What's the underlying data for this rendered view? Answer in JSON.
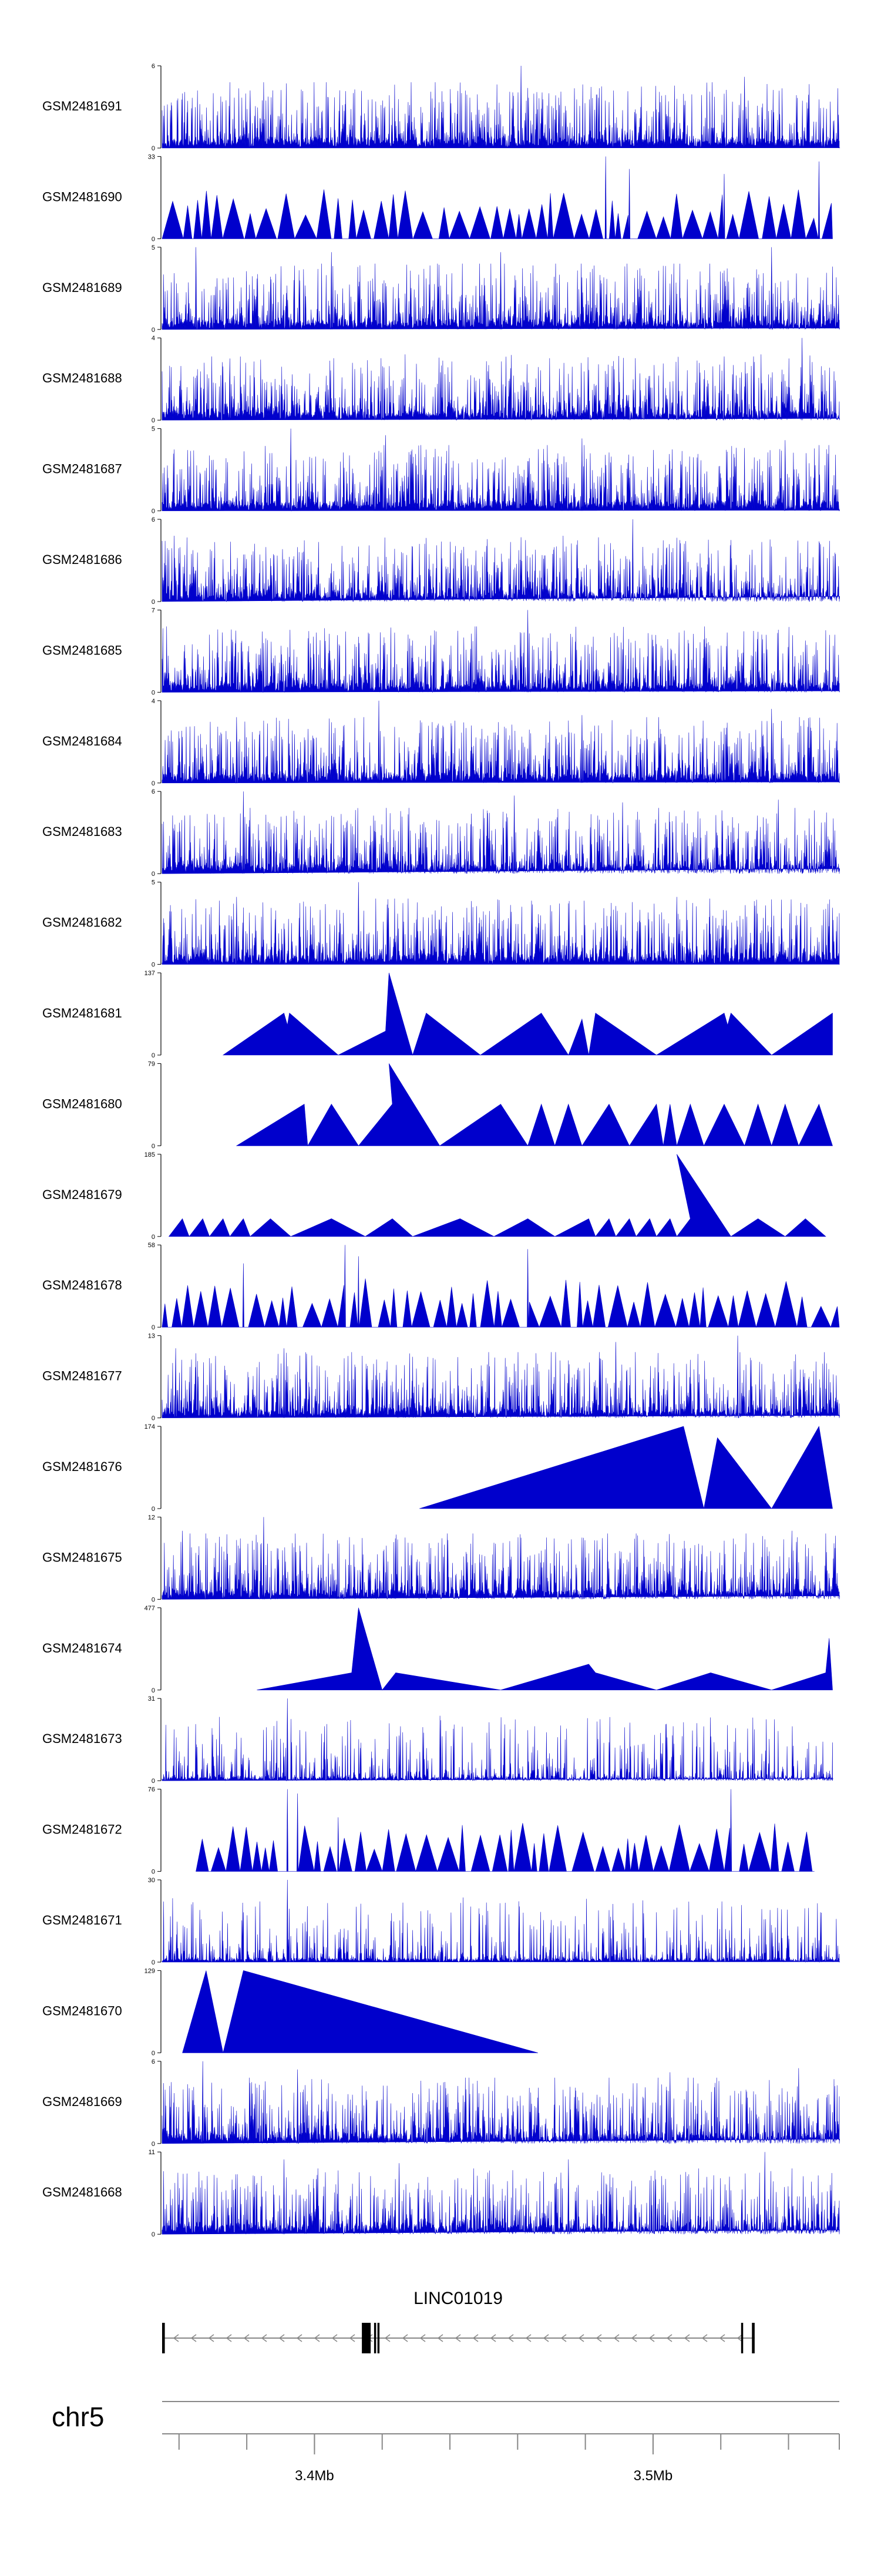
{
  "chart_data": {
    "type": "area",
    "title": "",
    "xlabel": "",
    "ylabel": "",
    "series_color": "#0000cc",
    "xlim_mb": [
      3.355,
      3.555
    ],
    "tracks": [
      {
        "name": "GSM2481691",
        "ymax_label": "6",
        "ymin_label": "0",
        "ymax": 6,
        "shape": "dense",
        "start": 0.0,
        "end": 1.0,
        "peaks": [
          [
            0.53,
            6.0
          ],
          [
            0.86,
            5.2
          ],
          [
            0.13,
            4.2
          ]
        ]
      },
      {
        "name": "GSM2481690",
        "ymax_label": "33",
        "ymin_label": "0",
        "ymax": 33,
        "shape": "sparse",
        "start": 0.0,
        "end": 0.99,
        "peaks": [
          [
            0.655,
            33.0
          ],
          [
            0.97,
            31.0
          ],
          [
            0.69,
            28.0
          ],
          [
            0.83,
            26.0
          ]
        ]
      },
      {
        "name": "GSM2481689",
        "ymax_label": "5",
        "ymin_label": "0",
        "ymax": 5,
        "shape": "dense",
        "start": 0.0,
        "end": 1.0,
        "peaks": [
          [
            0.05,
            5.0
          ],
          [
            0.25,
            4.7
          ],
          [
            0.5,
            4.7
          ],
          [
            0.9,
            5.0
          ]
        ]
      },
      {
        "name": "GSM2481688",
        "ymax_label": "4",
        "ymin_label": "0",
        "ymax": 4,
        "shape": "dense",
        "start": 0.0,
        "end": 1.0,
        "peaks": [
          [
            0.945,
            4.0
          ],
          [
            0.1,
            3.0
          ],
          [
            0.83,
            3.1
          ]
        ]
      },
      {
        "name": "GSM2481687",
        "ymax_label": "5",
        "ymin_label": "0",
        "ymax": 5,
        "shape": "dense",
        "start": 0.0,
        "end": 1.0,
        "peaks": [
          [
            0.19,
            5.0
          ],
          [
            0.33,
            4.6
          ],
          [
            0.62,
            4.4
          ],
          [
            0.92,
            4.3
          ]
        ]
      },
      {
        "name": "GSM2481686",
        "ymax_label": "6",
        "ymin_label": "0",
        "ymax": 6,
        "shape": "dense",
        "start": 0.0,
        "end": 1.0,
        "peaks": [
          [
            0.695,
            6.0
          ],
          [
            0.18,
            3.1
          ],
          [
            0.83,
            2.6
          ]
        ]
      },
      {
        "name": "GSM2481685",
        "ymax_label": "7",
        "ymin_label": "0",
        "ymax": 7,
        "shape": "dense",
        "start": 0.0,
        "end": 1.0,
        "peaks": [
          [
            0.54,
            7.0
          ],
          [
            0.95,
            4.4
          ],
          [
            0.15,
            4.2
          ]
        ]
      },
      {
        "name": "GSM2481684",
        "ymax_label": "4",
        "ymin_label": "0",
        "ymax": 4,
        "shape": "dense",
        "start": 0.0,
        "end": 1.0,
        "peaks": [
          [
            0.32,
            4.0
          ],
          [
            0.11,
            3.2
          ],
          [
            0.62,
            3.3
          ],
          [
            0.9,
            3.6
          ]
        ]
      },
      {
        "name": "GSM2481683",
        "ymax_label": "6",
        "ymin_label": "0",
        "ymax": 6,
        "shape": "dense",
        "start": 0.0,
        "end": 1.0,
        "peaks": [
          [
            0.12,
            6.0
          ],
          [
            0.52,
            5.7
          ],
          [
            0.68,
            5.2
          ],
          [
            0.91,
            5.4
          ]
        ]
      },
      {
        "name": "GSM2481682",
        "ymax_label": "5",
        "ymin_label": "0",
        "ymax": 5,
        "shape": "dense",
        "start": 0.0,
        "end": 1.0,
        "peaks": [
          [
            0.29,
            5.0
          ],
          [
            0.11,
            4.1
          ],
          [
            0.76,
            4.1
          ]
        ]
      },
      {
        "name": "GSM2481681",
        "ymax_label": "137",
        "ymin_label": "0",
        "ymax": 137,
        "shape": "tri",
        "start": 0.0,
        "end": 1.0,
        "points": [
          [
            0.09,
            0
          ],
          [
            0.18,
            70
          ],
          [
            0.185,
            50
          ],
          [
            0.188,
            70
          ],
          [
            0.26,
            0
          ],
          [
            0.33,
            40
          ],
          [
            0.335,
            137
          ],
          [
            0.37,
            0
          ],
          [
            0.39,
            70
          ],
          [
            0.47,
            0
          ],
          [
            0.56,
            70
          ],
          [
            0.6,
            0
          ],
          [
            0.62,
            60
          ],
          [
            0.63,
            0
          ],
          [
            0.64,
            70
          ],
          [
            0.73,
            0
          ],
          [
            0.83,
            70
          ],
          [
            0.835,
            50
          ],
          [
            0.84,
            70
          ],
          [
            0.9,
            0
          ],
          [
            0.99,
            70
          ],
          [
            0.99,
            0
          ]
        ]
      },
      {
        "name": "GSM2481680",
        "ymax_label": "79",
        "ymin_label": "0",
        "ymax": 79,
        "shape": "tri",
        "start": 0.0,
        "end": 1.0,
        "points": [
          [
            0.11,
            0
          ],
          [
            0.21,
            40
          ],
          [
            0.215,
            0
          ],
          [
            0.25,
            40
          ],
          [
            0.29,
            0
          ],
          [
            0.34,
            40
          ],
          [
            0.335,
            79
          ],
          [
            0.41,
            0
          ],
          [
            0.5,
            40
          ],
          [
            0.54,
            0
          ],
          [
            0.56,
            40
          ],
          [
            0.58,
            0
          ],
          [
            0.6,
            40
          ],
          [
            0.62,
            0
          ],
          [
            0.66,
            40
          ],
          [
            0.69,
            0
          ],
          [
            0.73,
            40
          ],
          [
            0.74,
            0
          ],
          [
            0.75,
            40
          ],
          [
            0.76,
            0
          ],
          [
            0.78,
            40
          ],
          [
            0.8,
            0
          ],
          [
            0.83,
            40
          ],
          [
            0.86,
            0
          ],
          [
            0.88,
            40
          ],
          [
            0.9,
            0
          ],
          [
            0.92,
            40
          ],
          [
            0.94,
            0
          ],
          [
            0.97,
            40
          ],
          [
            0.99,
            0
          ]
        ]
      },
      {
        "name": "GSM2481679",
        "ymax_label": "185",
        "ymin_label": "0",
        "ymax": 185,
        "shape": "tri",
        "start": 0.0,
        "end": 1.0,
        "points": [
          [
            0.01,
            0
          ],
          [
            0.03,
            40
          ],
          [
            0.04,
            0
          ],
          [
            0.06,
            40
          ],
          [
            0.07,
            0
          ],
          [
            0.09,
            40
          ],
          [
            0.1,
            0
          ],
          [
            0.12,
            40
          ],
          [
            0.13,
            0
          ],
          [
            0.16,
            40
          ],
          [
            0.19,
            0
          ],
          [
            0.25,
            40
          ],
          [
            0.3,
            0
          ],
          [
            0.34,
            40
          ],
          [
            0.37,
            0
          ],
          [
            0.44,
            40
          ],
          [
            0.49,
            0
          ],
          [
            0.54,
            40
          ],
          [
            0.58,
            0
          ],
          [
            0.63,
            40
          ],
          [
            0.64,
            0
          ],
          [
            0.66,
            40
          ],
          [
            0.67,
            0
          ],
          [
            0.69,
            40
          ],
          [
            0.7,
            0
          ],
          [
            0.72,
            40
          ],
          [
            0.73,
            0
          ],
          [
            0.75,
            40
          ],
          [
            0.76,
            0
          ],
          [
            0.78,
            40
          ],
          [
            0.76,
            185
          ],
          [
            0.84,
            0
          ],
          [
            0.88,
            40
          ],
          [
            0.92,
            0
          ],
          [
            0.95,
            40
          ],
          [
            0.98,
            0
          ]
        ]
      },
      {
        "name": "GSM2481678",
        "ymax_label": "58",
        "ymin_label": "0",
        "ymax": 58,
        "shape": "sparse",
        "start": 0.0,
        "end": 1.0,
        "peaks": [
          [
            0.27,
            58.0
          ],
          [
            0.54,
            55.0
          ],
          [
            0.12,
            45.0
          ],
          [
            0.29,
            50.0
          ]
        ]
      },
      {
        "name": "GSM2481677",
        "ymax_label": "13",
        "ymin_label": "0",
        "ymax": 13,
        "shape": "dense",
        "start": 0.0,
        "end": 1.0,
        "peaks": [
          [
            0.02,
            11.0
          ],
          [
            0.18,
            11.0
          ],
          [
            0.67,
            12.0
          ],
          [
            0.85,
            13.0
          ]
        ]
      },
      {
        "name": "GSM2481676",
        "ymax_label": "174",
        "ymin_label": "0",
        "ymax": 174,
        "shape": "tri",
        "start": 0.38,
        "end": 0.99,
        "points": [
          [
            0.38,
            0
          ],
          [
            0.77,
            174
          ],
          [
            0.8,
            0
          ],
          [
            0.82,
            150
          ],
          [
            0.9,
            0
          ],
          [
            0.97,
            174
          ],
          [
            0.99,
            0
          ]
        ]
      },
      {
        "name": "GSM2481675",
        "ymax_label": "12",
        "ymin_label": "0",
        "ymax": 12,
        "shape": "dense",
        "start": 0.0,
        "end": 1.0,
        "peaks": [
          [
            0.15,
            12.0
          ],
          [
            0.03,
            10.0
          ],
          [
            0.93,
            10.0
          ],
          [
            0.62,
            9.0
          ]
        ]
      },
      {
        "name": "GSM2481674",
        "ymax_label": "477",
        "ymin_label": "0",
        "ymax": 477,
        "shape": "tri",
        "start": 0.14,
        "end": 1.0,
        "points": [
          [
            0.14,
            0
          ],
          [
            0.28,
            100
          ],
          [
            0.29,
            477
          ],
          [
            0.325,
            0
          ],
          [
            0.345,
            100
          ],
          [
            0.5,
            0
          ],
          [
            0.63,
            150
          ],
          [
            0.64,
            100
          ],
          [
            0.73,
            0
          ],
          [
            0.81,
            100
          ],
          [
            0.9,
            0
          ],
          [
            0.98,
            100
          ],
          [
            0.985,
            300
          ],
          [
            0.99,
            0
          ]
        ]
      },
      {
        "name": "GSM2481673",
        "ymax_label": "31",
        "ymin_label": "0",
        "ymax": 31,
        "shape": "dense_low",
        "start": 0.0,
        "end": 0.99,
        "peaks": [
          [
            0.185,
            31.0
          ],
          [
            0.35,
            17.0
          ],
          [
            0.82,
            11.0
          ],
          [
            0.73,
            8.0
          ]
        ]
      },
      {
        "name": "GSM2481672",
        "ymax_label": "76",
        "ymin_label": "0",
        "ymax": 76,
        "shape": "sparse",
        "start": 0.05,
        "end": 0.96,
        "peaks": [
          [
            0.185,
            76.0
          ],
          [
            0.2,
            72.0
          ],
          [
            0.84,
            76.0
          ],
          [
            0.26,
            50.0
          ]
        ]
      },
      {
        "name": "GSM2481671",
        "ymax_label": "30",
        "ymin_label": "0",
        "ymax": 30,
        "shape": "dense_low",
        "start": 0.0,
        "end": 1.0,
        "peaks": [
          [
            0.185,
            30.0
          ],
          [
            0.07,
            10.0
          ],
          [
            0.75,
            9.0
          ],
          [
            0.97,
            8.0
          ]
        ]
      },
      {
        "name": "GSM2481670",
        "ymax_label": "129",
        "ymin_label": "0",
        "ymax": 129,
        "shape": "tri",
        "start": 0.03,
        "end": 0.56,
        "points": [
          [
            0.03,
            0
          ],
          [
            0.065,
            129
          ],
          [
            0.09,
            0
          ],
          [
            0.12,
            129
          ],
          [
            0.555,
            0
          ]
        ]
      },
      {
        "name": "GSM2481669",
        "ymax_label": "6",
        "ymin_label": "0",
        "ymax": 6,
        "shape": "dense",
        "start": 0.0,
        "end": 1.0,
        "peaks": [
          [
            0.06,
            6.0
          ],
          [
            0.2,
            5.4
          ],
          [
            0.75,
            5.2
          ],
          [
            0.94,
            5.5
          ]
        ]
      },
      {
        "name": "GSM2481668",
        "ymax_label": "11",
        "ymin_label": "0",
        "ymax": 11,
        "shape": "dense",
        "start": 0.0,
        "end": 1.0,
        "peaks": [
          [
            0.18,
            10.0
          ],
          [
            0.35,
            9.5
          ],
          [
            0.6,
            10.0
          ],
          [
            0.89,
            11.0
          ]
        ]
      }
    ],
    "gene": {
      "name": "LINC01019",
      "strand": "-",
      "start_frac": 0.0,
      "end_frac": 0.875,
      "exons": [
        [
          0.0,
          0.004
        ],
        [
          0.295,
          0.308
        ],
        [
          0.313,
          0.316
        ],
        [
          0.318,
          0.321
        ],
        [
          0.855,
          0.858
        ],
        [
          0.871,
          0.875
        ]
      ],
      "line_color": "#888888"
    },
    "axis": {
      "chromosome": "chr5",
      "tick_labels": [
        "3.4Mb",
        "3.5Mb"
      ],
      "major_ticks_mb": [
        3.4,
        3.5
      ],
      "minor_ticks_mb": [
        3.36,
        3.38,
        3.4,
        3.42,
        3.44,
        3.46,
        3.48,
        3.5,
        3.52,
        3.54,
        3.555
      ]
    }
  }
}
